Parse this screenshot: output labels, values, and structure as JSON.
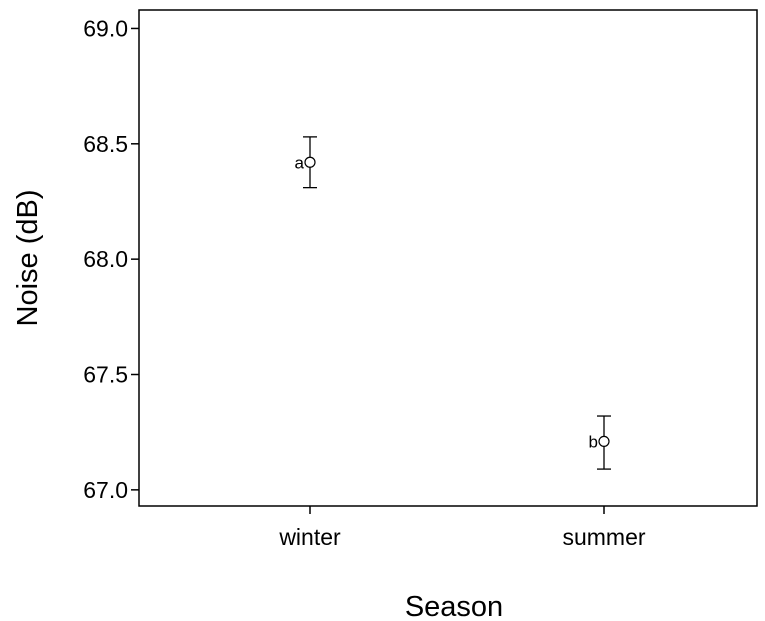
{
  "chart_data": {
    "type": "scatter",
    "title": "",
    "xlabel": "Season",
    "ylabel": "Noise (dB)",
    "categories": [
      "winter",
      "summer"
    ],
    "ylim": [
      66.93,
      69.08
    ],
    "yticks": [
      67.0,
      67.5,
      68.0,
      68.5,
      69.0
    ],
    "ytick_labels": [
      "67.0",
      "67.5",
      "68.0",
      "68.5",
      "69.0"
    ],
    "grid": false,
    "series": [
      {
        "values": [
          68.42,
          67.21
        ],
        "error_low": [
          68.31,
          67.09
        ],
        "error_high": [
          68.53,
          67.32
        ],
        "point_labels": [
          "a",
          "b"
        ]
      }
    ]
  }
}
